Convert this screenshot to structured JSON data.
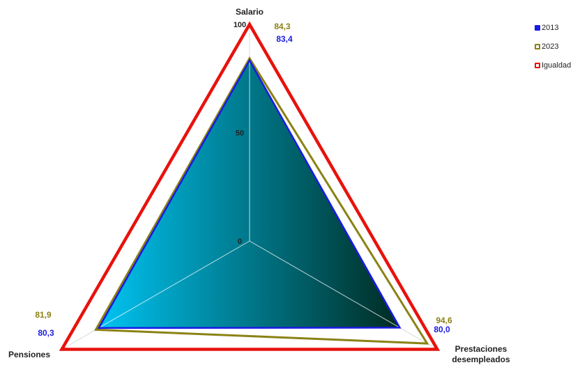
{
  "chart_data": {
    "type": "radar",
    "axes": [
      "Salario",
      "Prestaciones desempleados",
      "Pensiones"
    ],
    "axis_label_lines": [
      [
        "Salario"
      ],
      [
        "Prestaciones",
        "desempleados"
      ],
      [
        "Pensiones"
      ]
    ],
    "radial_ticks": [
      "0",
      "50",
      "100"
    ],
    "rlim": [
      0,
      100
    ],
    "series": [
      {
        "name": "Igualdad",
        "values": [
          100,
          100,
          100
        ],
        "color": "#e8120c"
      },
      {
        "name": "2023",
        "values": [
          84.3,
          94.6,
          81.9
        ],
        "labels": [
          "84,3",
          "94,6",
          "81,9"
        ],
        "color": "#8a8214"
      },
      {
        "name": "2013",
        "values": [
          83.4,
          80.0,
          80.3
        ],
        "labels": [
          "83,4",
          "80,0",
          "80,3"
        ],
        "color": "#1a1ae6"
      }
    ],
    "legend": {
      "position": "top-right",
      "order": [
        "2013",
        "2023",
        "Igualdad"
      ]
    },
    "fill": {
      "from": "#00c4f2",
      "to": "#002b22"
    }
  }
}
